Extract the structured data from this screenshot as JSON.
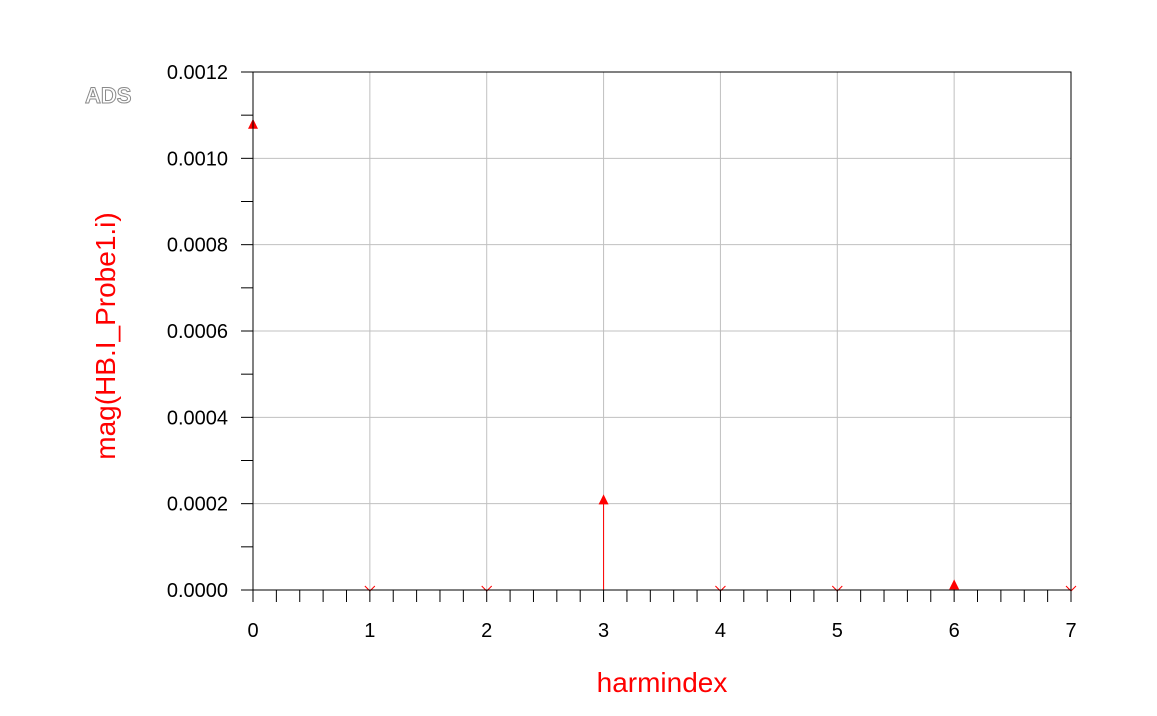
{
  "logo": "ADS",
  "chart_data": {
    "type": "stem",
    "xlabel": "harmindex",
    "ylabel": "mag(HB.I_Probe1.i)",
    "xlim": [
      0,
      7
    ],
    "ylim": [
      0,
      0.0012
    ],
    "x_ticks": [
      "0",
      "1",
      "2",
      "3",
      "4",
      "5",
      "6",
      "7"
    ],
    "y_ticks": [
      "0.0000",
      "0.0002",
      "0.0004",
      "0.0006",
      "0.0008",
      "0.0010",
      "0.0012"
    ],
    "grid": true,
    "series": [
      {
        "x": [
          0,
          1,
          2,
          3,
          4,
          5,
          6,
          7
        ],
        "values": [
          0.00108,
          1e-06,
          1e-06,
          0.00021,
          5e-07,
          1e-06,
          1.3e-05,
          5e-07
        ]
      }
    ],
    "colors": {
      "series": "#ff0000",
      "ylabel": "#ff0000",
      "xlabel": "#ff0000",
      "grid": "#c0c0c0",
      "frame": "#000000"
    }
  }
}
